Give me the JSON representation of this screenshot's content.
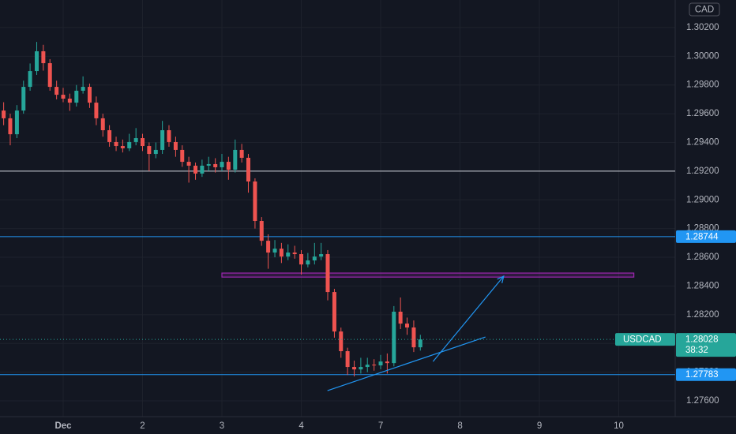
{
  "chart_data": {
    "type": "candlestick",
    "symbol": "USDCAD",
    "currency": "CAD",
    "countdown": "38:32",
    "up_color": "#26a69a",
    "down_color": "#ef5350",
    "grid": true,
    "xlim": [
      0.204,
      8.711
    ],
    "ylim": [
      1.2749,
      1.30392
    ],
    "xticks": [
      {
        "value": 1,
        "label": "Dec"
      },
      2,
      3,
      4,
      {
        "value": 5,
        "label": "7"
      },
      {
        "value": 6,
        "label": "8"
      },
      {
        "value": 7,
        "label": "9"
      },
      {
        "value": 8,
        "label": "10"
      }
    ],
    "yticks": [
      {
        "value": 1.302,
        "label": "1.30200"
      },
      {
        "value": 1.3,
        "label": "1.30000"
      },
      {
        "value": 1.298,
        "label": "1.29800"
      },
      {
        "value": 1.296,
        "label": "1.29600"
      },
      {
        "value": 1.294,
        "label": "1.29400"
      },
      {
        "value": 1.292,
        "label": "1.29200"
      },
      {
        "value": 1.29,
        "label": "1.29000"
      },
      {
        "value": 1.288,
        "label": "1.28800"
      },
      {
        "value": 1.286,
        "label": "1.28600"
      },
      {
        "value": 1.284,
        "label": "1.28400"
      },
      {
        "value": 1.282,
        "label": "1.28200"
      },
      {
        "value": 1.28,
        "label": "1.28000"
      },
      {
        "value": 1.278,
        "label": "1.27800"
      },
      {
        "value": 1.276,
        "label": "1.27600"
      }
    ],
    "x": [
      0.25,
      0.333,
      0.417,
      0.5,
      0.583,
      0.667,
      0.75,
      0.833,
      0.917,
      1,
      1.083,
      1.167,
      1.25,
      1.333,
      1.417,
      1.5,
      1.583,
      1.667,
      1.75,
      1.833,
      1.917,
      2,
      2.083,
      2.167,
      2.25,
      2.333,
      2.417,
      2.5,
      2.583,
      2.667,
      2.75,
      2.833,
      2.917,
      3,
      3.083,
      3.167,
      3.25,
      3.333,
      3.417,
      3.5,
      3.583,
      3.667,
      3.75,
      3.833,
      3.917,
      4,
      4.083,
      4.167,
      4.25,
      4.333,
      4.417,
      4.5,
      4.583,
      4.667,
      4.75,
      4.833,
      4.917,
      5,
      5.083,
      5.167,
      5.25,
      5.333,
      5.417,
      5.5
    ],
    "open": [
      1.29622,
      1.29568,
      1.29457,
      1.29622,
      1.29787,
      1.29897,
      1.30035,
      1.29952,
      1.29787,
      1.29732,
      1.29705,
      1.29677,
      1.2976,
      1.29787,
      1.29677,
      1.29568,
      1.29485,
      1.29403,
      1.29375,
      1.29359,
      1.29403,
      1.2943,
      1.29375,
      1.2932,
      1.29348,
      1.29485,
      1.29403,
      1.29348,
      1.29265,
      1.29238,
      1.29183,
      1.29238,
      1.29249,
      1.29227,
      1.29265,
      1.2921,
      1.29348,
      1.29293,
      1.29128,
      1.28853,
      1.28715,
      1.28633,
      1.2866,
      1.28605,
      1.28633,
      1.28622,
      1.2855,
      1.28578,
      1.28605,
      1.28622,
      1.28358,
      1.28083,
      1.27946,
      1.27836,
      1.27819,
      1.27836,
      1.27852,
      1.27847,
      1.27874,
      1.27863,
      1.28221,
      1.28138,
      1.28111,
      1.27973
    ],
    "high": [
      1.2968,
      1.296,
      1.2966,
      1.2983,
      1.2995,
      1.301,
      1.3008,
      1.2998,
      1.2983,
      1.2978,
      1.2974,
      1.298,
      1.2986,
      1.2981,
      1.2972,
      1.296,
      1.2952,
      1.2944,
      1.2942,
      1.2946,
      1.295,
      1.2946,
      1.294,
      1.294,
      1.2955,
      1.2952,
      1.2944,
      1.2938,
      1.293,
      1.2926,
      1.2928,
      1.293,
      1.2929,
      1.2932,
      1.293,
      1.2942,
      1.2939,
      1.2932,
      1.2915,
      1.2888,
      1.2876,
      1.2872,
      1.287,
      1.2869,
      1.2868,
      1.2865,
      1.2863,
      1.287,
      1.287,
      1.2865,
      1.2838,
      1.2811,
      1.2797,
      1.2788,
      1.279,
      1.279,
      1.2789,
      1.2792,
      1.2793,
      1.2826,
      1.2832,
      1.2818,
      1.2816,
      1.2806
    ],
    "low": [
      1.2952,
      1.2938,
      1.2943,
      1.296,
      1.2976,
      1.2987,
      1.299,
      1.2976,
      1.297,
      1.2968,
      1.2962,
      1.2965,
      1.2974,
      1.2964,
      1.2952,
      1.2944,
      1.2937,
      1.2934,
      1.2933,
      1.2934,
      1.2938,
      1.2934,
      1.292,
      1.2929,
      1.2932,
      1.2937,
      1.293,
      1.2923,
      1.2912,
      1.2914,
      1.2916,
      1.292,
      1.2919,
      1.292,
      1.2914,
      1.2919,
      1.2926,
      1.2905,
      1.288,
      1.2868,
      1.2852,
      1.286,
      1.2856,
      1.2858,
      1.2859,
      1.2848,
      1.2853,
      1.2855,
      1.2858,
      1.283,
      1.2804,
      1.279,
      1.2778,
      1.2777,
      1.2779,
      1.278,
      1.2781,
      1.2782,
      1.2779,
      1.2784,
      1.281,
      1.2806,
      1.2794,
      1.2795
    ],
    "close": [
      1.29568,
      1.29457,
      1.29622,
      1.29787,
      1.29897,
      1.30035,
      1.29952,
      1.29787,
      1.29732,
      1.29705,
      1.29677,
      1.2976,
      1.29787,
      1.29677,
      1.29568,
      1.29485,
      1.29403,
      1.29375,
      1.29359,
      1.29403,
      1.2943,
      1.29375,
      1.2932,
      1.29348,
      1.29485,
      1.29403,
      1.29348,
      1.29265,
      1.29238,
      1.29183,
      1.29238,
      1.29249,
      1.29227,
      1.29265,
      1.2921,
      1.29348,
      1.29293,
      1.29128,
      1.28853,
      1.28715,
      1.28633,
      1.2866,
      1.28605,
      1.28633,
      1.28622,
      1.2855,
      1.28578,
      1.28605,
      1.28622,
      1.28358,
      1.28083,
      1.27946,
      1.27836,
      1.27819,
      1.27836,
      1.27852,
      1.27847,
      1.27874,
      1.27863,
      1.28221,
      1.28138,
      1.28111,
      1.27973,
      1.28028
    ],
    "last_price": 1.28028,
    "hlines": [
      {
        "value": 1.292,
        "color": "#d1d4dc"
      }
    ],
    "price_lines": [
      {
        "value": 1.28744,
        "color": "#2196f3"
      },
      {
        "value": 1.27783,
        "color": "#2196f3"
      }
    ],
    "zones": [
      {
        "x": [
          3.0,
          8.19
        ],
        "y": [
          1.28462,
          1.2849
        ],
        "color": "#9c27b0"
      }
    ],
    "trendlines": [
      {
        "x": [
          4.33,
          6.32
        ],
        "y": [
          1.27671,
          1.28045
        ],
        "color": "#2196f3"
      }
    ],
    "arrows": [
      {
        "x": [
          5.66,
          6.55
        ],
        "y": [
          1.27874,
          1.28468
        ],
        "color": "#2196f3"
      }
    ]
  }
}
